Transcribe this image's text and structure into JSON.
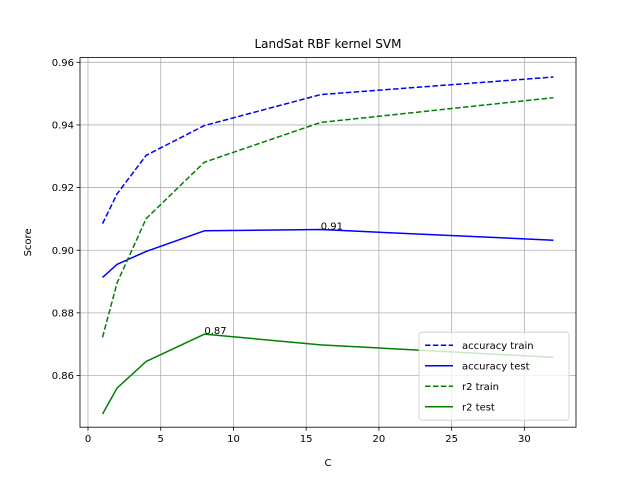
{
  "chart_data": {
    "type": "line",
    "title": "LandSat RBF kernel SVM",
    "xlabel": "C",
    "ylabel": "Score",
    "xlim": [
      -0.55,
      33.55
    ],
    "ylim": [
      0.8435,
      0.9615
    ],
    "xticks": [
      0,
      5,
      10,
      15,
      20,
      25,
      30
    ],
    "yticks": [
      0.86,
      0.88,
      0.9,
      0.92,
      0.94,
      0.96
    ],
    "xtick_labels": [
      "0",
      "5",
      "10",
      "15",
      "20",
      "25",
      "30"
    ],
    "ytick_labels": [
      "0.86",
      "0.88",
      "0.90",
      "0.92",
      "0.94",
      "0.96"
    ],
    "grid": true,
    "legend_position": "lower-right",
    "x": [
      1,
      2,
      4,
      8,
      16,
      32
    ],
    "series": [
      {
        "name": "accuracy train",
        "values": [
          0.9085,
          0.918,
          0.9303,
          0.9398,
          0.9497,
          0.9553
        ],
        "color": "#0000ff",
        "style": "dashed"
      },
      {
        "name": "accuracy test",
        "values": [
          0.8913,
          0.8955,
          0.8996,
          0.9062,
          0.9066,
          0.9032
        ],
        "color": "#0000ff",
        "style": "solid"
      },
      {
        "name": "r2 train",
        "values": [
          0.8722,
          0.8896,
          0.9101,
          0.9281,
          0.9408,
          0.9487
        ],
        "color": "#008000",
        "style": "dashed"
      },
      {
        "name": "r2 test",
        "values": [
          0.8477,
          0.856,
          0.8645,
          0.8732,
          0.8698,
          0.8658
        ],
        "color": "#008000",
        "style": "solid"
      }
    ],
    "annotations": [
      {
        "text": "0.91",
        "x": 16,
        "y": 0.9066
      },
      {
        "text": "0.87",
        "x": 8,
        "y": 0.8732
      }
    ]
  }
}
